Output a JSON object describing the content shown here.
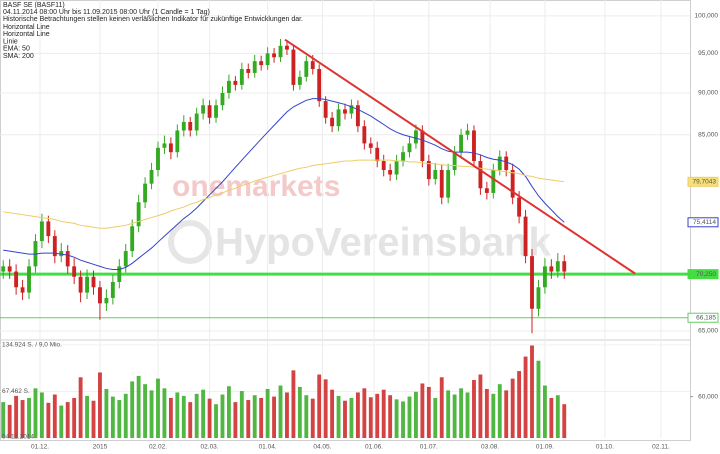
{
  "chart_data": {
    "type": "candlestick",
    "title": "BASF SE (BASF11)",
    "subtitle": "04.11.2014 08:00 Uhr bis 11.09.2015 08:00 Uhr (1 Candle = 1 Tag)",
    "disclaimer": "Historische Betrachtungen stellen keinen verläßlichen Indikator für zukünftige Entwicklungen dar.",
    "legend": [
      "Horizontal Line",
      "Horizontal Line",
      "Linie",
      "EMA: 50",
      "SMA: 200"
    ],
    "watermarks": [
      "onemarkets",
      "HypoVereinsbank"
    ],
    "start_label": "04.11.2014",
    "log_y": true,
    "grid": true,
    "up_color": "#33aa22",
    "down_color": "#cc2222",
    "ylim": [
      64.2,
      102.2
    ],
    "yticks": [
      {
        "value": 100,
        "label": "100,000"
      },
      {
        "value": 95,
        "label": "95,000"
      },
      {
        "value": 90,
        "label": "90,000"
      },
      {
        "value": 85,
        "label": "85,000"
      },
      {
        "value": 65,
        "label": "65,000"
      }
    ],
    "xlim": [
      -0.5,
      106.5
    ],
    "xticks": [
      {
        "value": 5.7,
        "label": "01.12."
      },
      {
        "value": 15,
        "label": "2015"
      },
      {
        "value": 24,
        "label": "02.02."
      },
      {
        "value": 32,
        "label": "02.03."
      },
      {
        "value": 41,
        "label": "01.04."
      },
      {
        "value": 49.5,
        "label": "04.05."
      },
      {
        "value": 57.5,
        "label": "01.06."
      },
      {
        "value": 66,
        "label": "01.07."
      },
      {
        "value": 75.5,
        "label": "03.08."
      },
      {
        "value": 84,
        "label": "01.09."
      },
      {
        "value": 93.3,
        "label": "01.10."
      },
      {
        "value": 102,
        "label": "02.11."
      }
    ],
    "volume_ylim": [
      0,
      142000
    ],
    "volume_ticks_left": [
      {
        "value": 134924,
        "label": "134.924 S. / 9,0 Mio."
      },
      {
        "value": 67462,
        "label": "67.462 S."
      }
    ],
    "volume_ticks_right": [
      {
        "value": 60000,
        "label": "60,000"
      }
    ],
    "candles": [
      [
        70.5,
        71.6,
        69.8,
        71,
        52000
      ],
      [
        71,
        71.7,
        69.8,
        70.5,
        48000
      ],
      [
        70.5,
        71.2,
        68.3,
        69,
        61000
      ],
      [
        69,
        69.7,
        67.8,
        68.5,
        55000
      ],
      [
        68.5,
        71.7,
        67.9,
        71,
        58000
      ],
      [
        71,
        74.2,
        70.4,
        73.5,
        72000
      ],
      [
        73.5,
        76.3,
        72.8,
        75.5,
        66000
      ],
      [
        75.5,
        76.1,
        73.3,
        74,
        51000
      ],
      [
        74,
        74.6,
        71.3,
        72,
        63000
      ],
      [
        72,
        73.3,
        71.4,
        72.5,
        47000
      ],
      [
        72.5,
        73.1,
        70.3,
        71,
        52000
      ],
      [
        71,
        71.8,
        69.3,
        70,
        58000
      ],
      [
        70,
        70.6,
        67.6,
        68.5,
        88000
      ],
      [
        68.5,
        70.7,
        67.9,
        70,
        61000
      ],
      [
        70,
        70.6,
        68.3,
        69,
        54000
      ],
      [
        69,
        69.6,
        66,
        67.5,
        95000
      ],
      [
        67.5,
        68.8,
        66.8,
        68,
        71000
      ],
      [
        68,
        70.2,
        67.4,
        69.5,
        60000
      ],
      [
        69.5,
        71.7,
        68.9,
        71,
        55000
      ],
      [
        71,
        73.2,
        70.4,
        72.5,
        64000
      ],
      [
        72.5,
        75.7,
        71.9,
        75,
        82000
      ],
      [
        75,
        78.3,
        74.4,
        77.5,
        90000
      ],
      [
        77.5,
        80.2,
        76.9,
        79.5,
        78000
      ],
      [
        79.5,
        81.8,
        78.9,
        81,
        69000
      ],
      [
        81,
        84.2,
        80.3,
        83.5,
        86000
      ],
      [
        83.5,
        84.9,
        82.8,
        84,
        72000
      ],
      [
        84,
        84.7,
        82.2,
        83,
        58000
      ],
      [
        83,
        86.2,
        82.4,
        85.5,
        66000
      ],
      [
        85.5,
        87.3,
        84.8,
        86.5,
        61000
      ],
      [
        86.5,
        87.1,
        84.8,
        85.5,
        52000
      ],
      [
        85.5,
        88.2,
        84.9,
        87.5,
        64000
      ],
      [
        87.5,
        89.3,
        86.8,
        88.5,
        70000
      ],
      [
        88.5,
        89.1,
        86.3,
        87,
        57000
      ],
      [
        87,
        89.2,
        86.4,
        88.5,
        49000
      ],
      [
        88.5,
        90.8,
        87.9,
        90,
        63000
      ],
      [
        90,
        92.3,
        89.3,
        91.5,
        75000
      ],
      [
        91.5,
        92.1,
        90.3,
        91,
        52000
      ],
      [
        91,
        93.8,
        90.4,
        93,
        68000
      ],
      [
        93,
        93.7,
        91.8,
        92.5,
        55000
      ],
      [
        92.5,
        94.8,
        91.9,
        94,
        62000
      ],
      [
        94,
        94.7,
        92.8,
        93.5,
        58000
      ],
      [
        93.5,
        95.8,
        92.9,
        95,
        71000
      ],
      [
        95,
        95.7,
        93.8,
        94.5,
        60000
      ],
      [
        94.5,
        96.9,
        93.9,
        96,
        76000
      ],
      [
        96,
        96.7,
        94.8,
        95.5,
        66000
      ],
      [
        95.5,
        96.1,
        90.3,
        91,
        98000
      ],
      [
        91,
        92.8,
        90.4,
        92,
        74000
      ],
      [
        92,
        94.7,
        91.4,
        94,
        62000
      ],
      [
        94,
        94.8,
        92.3,
        93,
        57000
      ],
      [
        93,
        93.6,
        88.3,
        89,
        92000
      ],
      [
        89,
        89.6,
        86.3,
        87,
        85000
      ],
      [
        87,
        87.7,
        85.3,
        86,
        70000
      ],
      [
        86,
        88.7,
        85.4,
        88,
        61000
      ],
      [
        88,
        88.7,
        86.8,
        87.5,
        54000
      ],
      [
        87.5,
        89.2,
        86.9,
        88.5,
        58000
      ],
      [
        88.5,
        89.1,
        85.3,
        86,
        66000
      ],
      [
        86,
        86.7,
        83.3,
        84,
        72000
      ],
      [
        84,
        84.7,
        82.8,
        83.5,
        59000
      ],
      [
        83.5,
        84.2,
        81.3,
        82,
        64000
      ],
      [
        82,
        82.7,
        80.3,
        81,
        70000
      ],
      [
        81,
        81.7,
        79.8,
        80.5,
        62000
      ],
      [
        80.5,
        82.7,
        79.9,
        82,
        56000
      ],
      [
        82,
        83.7,
        81.4,
        83,
        53000
      ],
      [
        83,
        84.8,
        82.4,
        84,
        60000
      ],
      [
        84,
        86.2,
        83.4,
        85.5,
        67000
      ],
      [
        85.5,
        86.1,
        81.3,
        82,
        79000
      ],
      [
        82,
        82.7,
        79.3,
        80,
        74000
      ],
      [
        80,
        81.8,
        79.4,
        81,
        58000
      ],
      [
        81,
        81.6,
        77.3,
        78,
        88000
      ],
      [
        78,
        81.7,
        77.4,
        81,
        69000
      ],
      [
        81,
        83.7,
        80.4,
        83,
        63000
      ],
      [
        83,
        85.7,
        82.4,
        85,
        72000
      ],
      [
        85,
        86.3,
        84.4,
        85.5,
        66000
      ],
      [
        85.5,
        86.1,
        81.3,
        82,
        84000
      ],
      [
        82,
        82.7,
        78.3,
        79,
        92000
      ],
      [
        79,
        79.7,
        77.8,
        78.5,
        71000
      ],
      [
        78.5,
        81.7,
        77.9,
        81,
        64000
      ],
      [
        81,
        83.2,
        80.4,
        82.5,
        78000
      ],
      [
        82.5,
        83.1,
        80.3,
        81,
        69000
      ],
      [
        81,
        81.7,
        77.3,
        78,
        86000
      ],
      [
        78,
        78.7,
        75.3,
        76,
        97000
      ],
      [
        76,
        76.7,
        71.3,
        72,
        118000
      ],
      [
        72,
        72.7,
        64.8,
        67,
        134000
      ],
      [
        67,
        69.7,
        66.3,
        69,
        112000
      ],
      [
        69,
        71.8,
        68.4,
        71,
        76000
      ],
      [
        71,
        71.7,
        69.8,
        70.5,
        58000
      ],
      [
        70.5,
        72.3,
        69.9,
        71.5,
        62000
      ],
      [
        71.5,
        72.1,
        69.8,
        70.5,
        49000
      ]
    ],
    "series": [
      {
        "name": "EMA: 50",
        "color": "#3344cc",
        "value_labels": [
          "75,4114"
        ],
        "values": [
          72.6,
          72.5,
          72.4,
          72.3,
          72.2,
          72.2,
          72.3,
          72.3,
          72.3,
          72.2,
          72.1,
          71.9,
          71.6,
          71.4,
          71.2,
          71,
          70.8,
          70.7,
          70.7,
          70.9,
          71.3,
          71.8,
          72.3,
          72.8,
          73.4,
          74,
          74.6,
          75.2,
          75.8,
          76.3,
          76.9,
          77.6,
          78.3,
          79,
          79.7,
          80.5,
          81.3,
          82.1,
          82.9,
          83.7,
          84.5,
          85.3,
          86.1,
          86.9,
          87.7,
          88.3,
          88.7,
          89.1,
          89.3,
          89.3,
          89.2,
          89,
          88.8,
          88.6,
          88.3,
          88,
          87.6,
          87.2,
          86.7,
          86.2,
          85.7,
          85.3,
          85,
          84.8,
          84.6,
          84.4,
          84.1,
          83.8,
          83.4,
          83.1,
          83,
          83,
          83,
          82.9,
          82.7,
          82.4,
          82.2,
          82.1,
          81.9,
          81.6,
          81.1,
          80.3,
          79.2,
          78.2,
          77.4,
          76.7,
          76,
          75.4114
        ]
      },
      {
        "name": "SMA: 200",
        "color": "#eecc66",
        "value_labels": [
          "79,7043"
        ],
        "values": [
          76.5,
          76.4,
          76.3,
          76.2,
          76.1,
          76,
          75.9,
          75.8,
          75.7,
          75.5,
          75.4,
          75.3,
          75.1,
          75,
          74.9,
          74.8,
          74.8,
          74.9,
          75,
          75.1,
          75.3,
          75.5,
          75.7,
          75.9,
          76.1,
          76.3,
          76.6,
          76.8,
          77,
          77.3,
          77.5,
          77.8,
          78,
          78.3,
          78.5,
          78.8,
          79,
          79.3,
          79.5,
          79.8,
          80,
          80.2,
          80.4,
          80.6,
          80.8,
          81,
          81.2,
          81.3,
          81.5,
          81.6,
          81.7,
          81.8,
          81.9,
          82,
          82,
          82.1,
          82.1,
          82.1,
          82.1,
          82.1,
          82.1,
          82,
          82,
          81.9,
          81.9,
          81.8,
          81.7,
          81.7,
          81.6,
          81.5,
          81.5,
          81.4,
          81.4,
          81.3,
          81.2,
          81.1,
          81,
          80.9,
          80.8,
          80.7,
          80.6,
          80.4,
          80.3,
          80.1,
          80,
          79.9,
          79.8,
          79.7043
        ]
      }
    ],
    "horizontal_lines": [
      {
        "value": 70.25,
        "label": "70,250",
        "color": "#44dd44"
      },
      {
        "value": 66.185,
        "label": "66,185",
        "color": "#66cc66"
      }
    ],
    "trend_line": {
      "color": "#dd3333",
      "x": [
        43.7,
        98
      ],
      "values": [
        96.8,
        70.3
      ]
    }
  }
}
